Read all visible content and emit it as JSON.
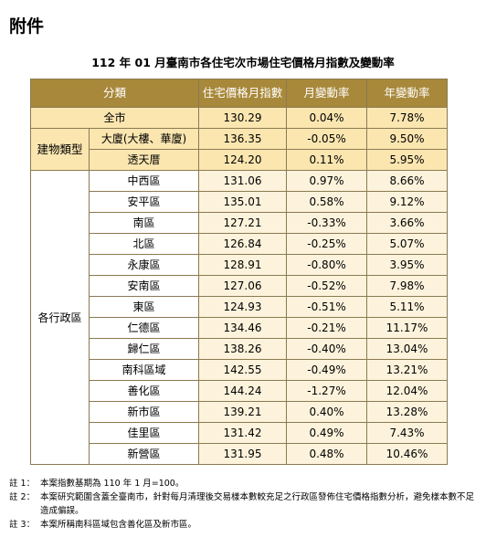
{
  "heading": "附件",
  "caption": "112 年 01 月臺南市各住宅次市場住宅價格月指數及變動率",
  "columns": [
    "分類",
    "住宅價格月指數",
    "月變動率",
    "年變動率"
  ],
  "all_city": {
    "label": "全市",
    "index": "130.29",
    "mom": "0.04%",
    "yoy": "7.78%"
  },
  "building_type": {
    "group_label": "建物類型",
    "rows": [
      {
        "label": "大廈(大樓、華廈)",
        "index": "136.35",
        "mom": "-0.05%",
        "yoy": "9.50%"
      },
      {
        "label": "透天厝",
        "index": "124.20",
        "mom": "0.11%",
        "yoy": "5.95%"
      }
    ]
  },
  "districts": {
    "group_label": "各行政區",
    "rows": [
      {
        "label": "中西區",
        "index": "131.06",
        "mom": "0.97%",
        "yoy": "8.66%"
      },
      {
        "label": "安平區",
        "index": "135.01",
        "mom": "0.58%",
        "yoy": "9.12%"
      },
      {
        "label": "南區",
        "index": "127.21",
        "mom": "-0.33%",
        "yoy": "3.66%"
      },
      {
        "label": "北區",
        "index": "126.84",
        "mom": "-0.25%",
        "yoy": "5.07%"
      },
      {
        "label": "永康區",
        "index": "128.91",
        "mom": "-0.80%",
        "yoy": "3.95%"
      },
      {
        "label": "安南區",
        "index": "127.06",
        "mom": "-0.52%",
        "yoy": "7.98%"
      },
      {
        "label": "東區",
        "index": "124.93",
        "mom": "-0.51%",
        "yoy": "5.11%"
      },
      {
        "label": "仁德區",
        "index": "134.46",
        "mom": "-0.21%",
        "yoy": "11.17%"
      },
      {
        "label": "歸仁區",
        "index": "138.26",
        "mom": "-0.40%",
        "yoy": "13.04%"
      },
      {
        "label": "南科區域",
        "index": "142.55",
        "mom": "-0.49%",
        "yoy": "13.21%"
      },
      {
        "label": "善化區",
        "index": "144.24",
        "mom": "-1.27%",
        "yoy": "12.04%"
      },
      {
        "label": "新市區",
        "index": "139.21",
        "mom": "0.40%",
        "yoy": "13.28%"
      },
      {
        "label": "佳里區",
        "index": "131.42",
        "mom": "0.49%",
        "yoy": "7.43%"
      },
      {
        "label": "新營區",
        "index": "131.95",
        "mom": "0.48%",
        "yoy": "10.46%"
      }
    ]
  },
  "notes": [
    {
      "label": "註 1：",
      "text": "本案指數基期為 110 年 1 月=100。"
    },
    {
      "label": "註 2：",
      "text": "本案研究範圍含蓋全臺南市，針對每月清理後交易樣本數較充足之行政區發佈住宅價格指數分析，避免樣本數不足造成偏誤。"
    },
    {
      "label": "註 3：",
      "text": "本案所稱南科區域包含善化區及新市區。"
    }
  ]
}
